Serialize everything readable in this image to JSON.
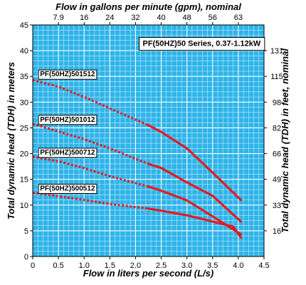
{
  "chart_data": {
    "type": "line",
    "title": "",
    "info_box": "PF(50HZ)50 Series, 0.37-1.12kW",
    "xlabel": "Flow in liters per second (L/s)",
    "x2label": "Flow in gallons per minute (gpm), nominal",
    "ylabel": "Total dynamic head (TDH) in meters",
    "y2label": "Total dynamic head (TDH) in feet, nominal",
    "xlim": [
      0,
      4.5
    ],
    "ylim": [
      0,
      45
    ],
    "grid": true,
    "x_ticks": [
      "0",
      "0.5",
      "1.0",
      "1.5",
      "2.0",
      "2.5",
      "3.0",
      "3.5",
      "4.0",
      "4.5"
    ],
    "y_ticks": [
      "0",
      "5",
      "10",
      "15",
      "20",
      "25",
      "30",
      "35",
      "40",
      "45"
    ],
    "x2_ticks": [
      {
        "x": 0.5,
        "label": "7.9"
      },
      {
        "x": 1.0,
        "label": "16"
      },
      {
        "x": 1.5,
        "label": "24"
      },
      {
        "x": 2.0,
        "label": "32"
      },
      {
        "x": 2.5,
        "label": "40"
      },
      {
        "x": 3.0,
        "label": "48"
      },
      {
        "x": 3.5,
        "label": "56"
      },
      {
        "x": 4.0,
        "label": "63"
      }
    ],
    "y2_ticks": [
      {
        "y": 5,
        "label": "16"
      },
      {
        "y": 10,
        "label": "33"
      },
      {
        "y": 15,
        "label": "49"
      },
      {
        "y": 20,
        "label": "66"
      },
      {
        "y": 25,
        "label": "82"
      },
      {
        "y": 30,
        "label": "98"
      },
      {
        "y": 35,
        "label": "115"
      },
      {
        "y": 40,
        "label": "131"
      }
    ],
    "series": [
      {
        "name": "PF(50HZ)501512",
        "dotted": [
          [
            0,
            34.3
          ],
          [
            0.5,
            33.0
          ],
          [
            1.0,
            31.0
          ],
          [
            1.5,
            28.8
          ],
          [
            2.25,
            25.5
          ]
        ],
        "solid": [
          [
            2.25,
            25.5
          ],
          [
            2.5,
            24.2
          ],
          [
            3.0,
            21.0
          ],
          [
            3.5,
            16.3
          ],
          [
            4.05,
            11.0
          ]
        ],
        "label_anchor": [
          0.1,
          35.0
        ]
      },
      {
        "name": "PF(50HZ)501012",
        "dotted": [
          [
            0,
            25.8
          ],
          [
            0.5,
            24.3
          ],
          [
            1.0,
            22.8
          ],
          [
            1.5,
            21.0
          ],
          [
            2.25,
            18.0
          ]
        ],
        "solid": [
          [
            2.25,
            18.0
          ],
          [
            2.5,
            17.2
          ],
          [
            3.0,
            14.4
          ],
          [
            3.5,
            11.8
          ],
          [
            4.05,
            6.8
          ]
        ],
        "label_anchor": [
          0.1,
          26.2
        ]
      },
      {
        "name": "PF(50HZ)500712",
        "dotted": [
          [
            0,
            19.4
          ],
          [
            0.5,
            18.5
          ],
          [
            1.0,
            17.2
          ],
          [
            1.5,
            15.6
          ],
          [
            2.25,
            13.6
          ]
        ],
        "solid": [
          [
            2.25,
            13.6
          ],
          [
            2.5,
            12.8
          ],
          [
            3.0,
            10.9
          ],
          [
            3.5,
            7.8
          ],
          [
            4.05,
            4.3
          ]
        ],
        "label_anchor": [
          0.1,
          19.8
        ]
      },
      {
        "name": "PF(50HZ)500512",
        "dotted": [
          [
            0,
            12.4
          ],
          [
            0.5,
            11.7
          ],
          [
            1.0,
            11.0
          ],
          [
            1.5,
            10.2
          ],
          [
            2.25,
            9.3
          ]
        ],
        "solid": [
          [
            2.25,
            9.3
          ],
          [
            2.5,
            8.9
          ],
          [
            3.0,
            8.0
          ],
          [
            3.5,
            6.8
          ],
          [
            3.9,
            5.8
          ],
          [
            4.05,
            3.7
          ]
        ],
        "label_anchor": [
          0.1,
          12.8
        ]
      }
    ],
    "colors": {
      "background": "#2fb4e9",
      "grid": "#ffffff",
      "curve": "#e31b23",
      "frame": "#000000"
    }
  }
}
